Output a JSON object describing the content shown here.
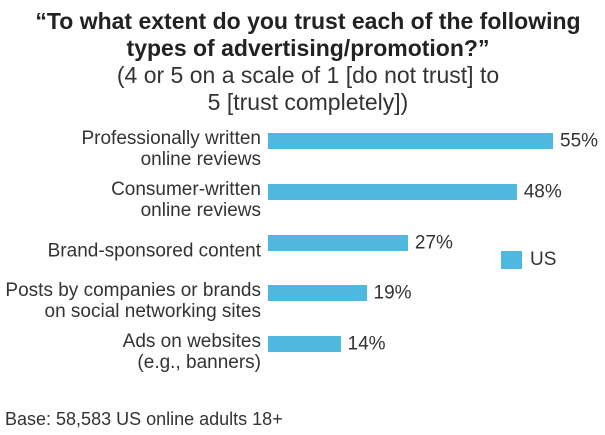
{
  "chart_data": {
    "type": "bar",
    "orientation": "horizontal",
    "title": "“To what extent do you trust each of the following\ntypes of advertising/promotion?”",
    "subtitle": "(4 or 5 on a scale of 1 [do not trust] to\n5 [trust completely])",
    "categories": [
      "Professionally written\nonline reviews",
      "Consumer-written\nonline reviews",
      "Brand-sponsored content",
      "Posts by companies or brands\non social networking sites",
      "Ads on websites\n(e.g., banners)"
    ],
    "series": [
      {
        "name": "US",
        "values": [
          55,
          48,
          27,
          19,
          14
        ],
        "color": "#4fb8e1"
      }
    ],
    "value_suffix": "%",
    "grid": false,
    "legend": "right",
    "footnote": "Base: 58,583 US online adults 18+"
  }
}
